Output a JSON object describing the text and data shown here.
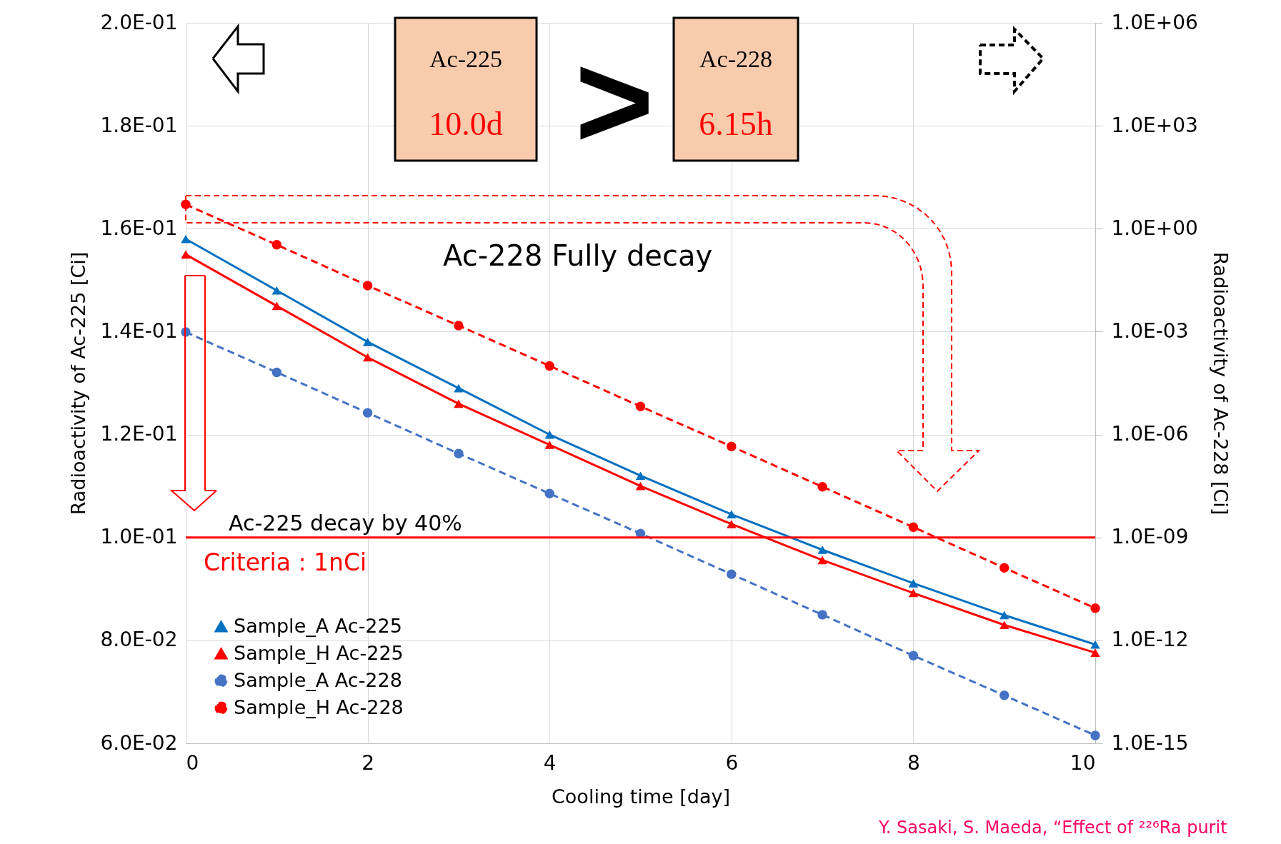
{
  "chart_data": {
    "type": "line",
    "xlabel": "Cooling time [day]",
    "ylabel": "Radioactivity of Ac-225 [Ci]",
    "y2label": "Radioactivity of  Ac-228 [Ci]",
    "x": [
      0,
      1,
      2,
      3,
      4,
      5,
      6,
      7,
      8,
      9,
      10
    ],
    "xlim": [
      0,
      10
    ],
    "xticks": [
      0,
      2,
      4,
      6,
      8,
      10
    ],
    "ylim": [
      0.06,
      0.2
    ],
    "yticks": [
      {
        "value": 0.06,
        "label": "6.0E-02"
      },
      {
        "value": 0.08,
        "label": "8.0E-02"
      },
      {
        "value": 0.1,
        "label": "1.0E-01"
      },
      {
        "value": 0.12,
        "label": "1.2E-01"
      },
      {
        "value": 0.14,
        "label": "1.4E-01"
      },
      {
        "value": 0.16,
        "label": "1.6E-01"
      },
      {
        "value": 0.18,
        "label": "1.8E-01"
      },
      {
        "value": 0.2,
        "label": "2.0E-01"
      }
    ],
    "y2lim": [
      1e-15,
      1000000.0
    ],
    "y2ticks": [
      {
        "value": 1e-15,
        "label": "1.0E-15"
      },
      {
        "value": 1e-12,
        "label": "1.0E-12"
      },
      {
        "value": 1e-09,
        "label": "1.0E-09"
      },
      {
        "value": 1e-06,
        "label": "1.0E-06"
      },
      {
        "value": 0.001,
        "label": "1.0E-03"
      },
      {
        "value": 1,
        "label": "1.0E+00"
      },
      {
        "value": 1000.0,
        "label": "1.0E+03"
      },
      {
        "value": 1000000.0,
        "label": "1.0E+06"
      }
    ],
    "log": "y2",
    "grid": true,
    "legend": "bottom left",
    "series": [
      {
        "name": "Sample_A Ac-225",
        "color": "#0070c0",
        "marker": "triangle",
        "line_style": "solid",
        "values": [
          0.158,
          0.148,
          0.138,
          0.129,
          0.12,
          0.112,
          0.1045,
          0.0976,
          0.0911,
          0.0849,
          0.0792
        ]
      },
      {
        "name": "Sample_H Ac-225",
        "color": "#ff0000",
        "marker": "triangle",
        "line_style": "solid",
        "values": [
          0.155,
          0.145,
          0.135,
          0.126,
          0.118,
          0.11,
          0.1026,
          0.0956,
          0.0892,
          0.083,
          0.0776
        ]
      },
      {
        "name": "Sample_A Ac-228",
        "color": "#4472c4",
        "marker": "circle",
        "line_style": "dashed",
        "axis": "y2",
        "values": [
          0.00097,
          6.5e-05,
          4.3e-06,
          2.8e-07,
          1.9e-08,
          1.3e-09,
          8.5e-11,
          5.6e-12,
          3.6e-13,
          2.5e-14,
          1.7e-15
        ]
      },
      {
        "name": "Sample_H Ac-228",
        "color": "#ff0000",
        "marker": "circle",
        "line_style": "dashed",
        "axis": "y2",
        "values": [
          5.1,
          0.34,
          0.022,
          0.0015,
          0.0001,
          6.6e-06,
          4.5e-07,
          3e-08,
          2e-09,
          1.3e-10,
          8.7e-12
        ]
      }
    ],
    "ref_lines": [
      {
        "axis": "y2",
        "value": 1e-09,
        "label": "Criteria : 1nCi",
        "color": "#ff0000"
      }
    ],
    "annotations": [
      "Ac-225",
      "10.0d",
      "Ac-228",
      "6.15h",
      ">",
      "Ac-228 Fully decay",
      "Ac-225 decay by 40%",
      "Y. Sasaki, S. Maeda, “Effect of ²²⁶Ra purit"
    ]
  }
}
